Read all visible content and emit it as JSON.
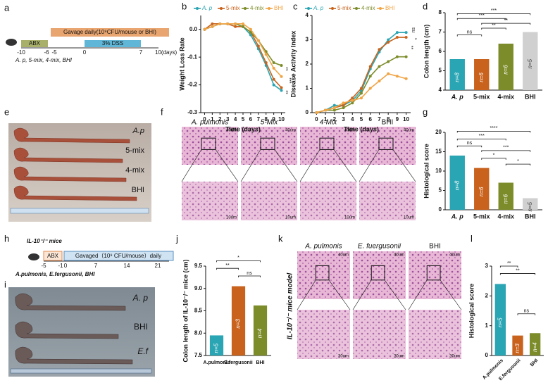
{
  "panel_labels": [
    "a",
    "b",
    "c",
    "d",
    "e",
    "f",
    "g",
    "h",
    "i",
    "j",
    "k",
    "l"
  ],
  "schematic_a": {
    "abx": "ABX",
    "gavage": "Gavage daily(10⁹CFU/mouse or BHI)",
    "dss": "3% DSS",
    "ticks": [
      "-10",
      "-6",
      "-5",
      "0",
      "7",
      "10(days)"
    ],
    "groups": "A. p, 5-mix, 4-mix, BHI"
  },
  "photo_e": {
    "labels": [
      "A.p",
      "5-mix",
      "4-mix",
      "BHI"
    ]
  },
  "histology_f": {
    "labels": [
      "A. pulmonis",
      "5-Mix",
      "4-Mix",
      "BHI"
    ],
    "scale_top": "40um",
    "scale_bottom": "10um"
  },
  "schematic_h": {
    "title": "IL-10⁻/⁻ mice",
    "abx": "ABX",
    "gavage": "Gavaged（10⁹ CFU/mouse）daily",
    "ticks": [
      "-5",
      "-1",
      "0",
      "7",
      "14",
      "21"
    ],
    "groups": "A.pulmonis, E.fergusonii, BHI"
  },
  "photo_i": {
    "labels": [
      "A. p",
      "BHI",
      "E.f"
    ]
  },
  "histology_k": {
    "labels": [
      "A. pulmonis",
      "E. fuergusonii",
      "BHI"
    ],
    "side": "IL-10⁻/⁻ mice model",
    "scale_top": "40um",
    "scale_bottom": "20um"
  },
  "chart_data": [
    {
      "type": "line",
      "xlabel": "Time (days)",
      "ylabel": "Weight Loss Rate",
      "x": [
        0,
        1,
        2,
        3,
        4,
        5,
        6,
        7,
        8,
        9,
        10
      ],
      "xlim": [
        -0.5,
        10.5
      ],
      "xticks": [
        0,
        1,
        2,
        3,
        4,
        5,
        6,
        7,
        8,
        9,
        10
      ],
      "ylim": [
        -0.3,
        0.05
      ],
      "yticks": [
        {
          "value": 0,
          "label": "0.0"
        },
        -0.1,
        -0.2,
        -0.3
      ],
      "series": [
        {
          "name": "A. p",
          "color": "#2aa5b3",
          "values": [
            0,
            0.01,
            0.02,
            0.02,
            0.02,
            0.01,
            -0.02,
            -0.07,
            -0.13,
            -0.2,
            -0.22
          ]
        },
        {
          "name": "5-mix",
          "color": "#c8621c",
          "values": [
            0,
            0.02,
            0.02,
            0.02,
            0.01,
            0.01,
            -0.01,
            -0.06,
            -0.12,
            -0.18,
            -0.21
          ]
        },
        {
          "name": "4-mix",
          "color": "#7d8c2a",
          "values": [
            0,
            0.01,
            0.02,
            0.02,
            0.02,
            0.01,
            -0.01,
            -0.04,
            -0.08,
            -0.12,
            -0.13
          ]
        },
        {
          "name": "BHI",
          "color": "#f0a445",
          "values": [
            0,
            0.01,
            0.02,
            0.02,
            0.02,
            0.02,
            0,
            -0.04,
            -0.09,
            -0.14,
            -0.17
          ]
        }
      ],
      "annotations": [
        "**",
        "***",
        "**"
      ]
    },
    {
      "type": "line",
      "xlabel": "Time (days)",
      "ylabel": "Disease Activity Index",
      "x": [
        0,
        1,
        2,
        3,
        4,
        5,
        6,
        7,
        8,
        9,
        10
      ],
      "xlim": [
        -0.5,
        10.5
      ],
      "xticks": [
        0,
        1,
        2,
        3,
        4,
        5,
        6,
        7,
        8,
        9,
        10
      ],
      "ylim": [
        0,
        4
      ],
      "yticks": [
        0,
        1,
        2,
        3,
        4
      ],
      "series": [
        {
          "name": "A. p",
          "color": "#2aa5b3",
          "values": [
            0,
            0.1,
            0.3,
            0.3,
            0.5,
            0.9,
            1.8,
            2.5,
            3.0,
            3.3,
            3.3
          ]
        },
        {
          "name": "5-mix",
          "color": "#c8621c",
          "values": [
            0,
            0.1,
            0.2,
            0.3,
            0.6,
            1.0,
            1.9,
            2.6,
            2.9,
            3.1,
            3.1
          ]
        },
        {
          "name": "4-mix",
          "color": "#7d8c2a",
          "values": [
            0,
            0.1,
            0.1,
            0.2,
            0.4,
            0.8,
            1.5,
            1.9,
            2.1,
            2.3,
            2.3
          ]
        },
        {
          "name": "BHI",
          "color": "#f0a445",
          "values": [
            0,
            0.1,
            0.2,
            0.4,
            0.5,
            0.6,
            1.0,
            1.3,
            1.6,
            1.5,
            1.4
          ]
        }
      ],
      "annotations": [
        "ns",
        "*",
        "**"
      ]
    },
    {
      "type": "bar",
      "ylabel": "Colon length (cm)",
      "categories": [
        "A. p",
        "5-mix",
        "4-mix",
        "BHI"
      ],
      "values": [
        5.6,
        5.6,
        6.4,
        7.0
      ],
      "colors": [
        "#2aa5b3",
        "#c8621c",
        "#7d8c2a",
        "#d0d0d0"
      ],
      "ylim": [
        4,
        8
      ],
      "yticks": [
        4,
        5,
        6,
        7,
        8
      ],
      "n_labels": [
        "n=8",
        "n=6",
        "n=6",
        "n=5"
      ],
      "annotations": [
        "ns",
        "**",
        "**",
        "***",
        "***"
      ]
    },
    {
      "type": "bar",
      "ylabel": "Histological score",
      "categories": [
        "A. p",
        "5-mix",
        "4-mix",
        "BHI"
      ],
      "values": [
        14,
        10.8,
        7,
        3
      ],
      "colors": [
        "#2aa5b3",
        "#c8621c",
        "#7d8c2a",
        "#d0d0d0"
      ],
      "ylim": [
        0,
        20
      ],
      "yticks": [
        0,
        5,
        10,
        15,
        20
      ],
      "n_labels": [
        "n=8",
        "n=6",
        "n=6",
        "n=5"
      ],
      "annotations": [
        "ns",
        "*",
        "***",
        "*",
        "***",
        "****"
      ]
    },
    {
      "type": "bar",
      "ylabel": "Colon length of IL-10⁻/⁻ mice (cm)",
      "categories": [
        "A.pulmonis",
        "E.fergusonii",
        "BHI"
      ],
      "values": [
        7.95,
        9.05,
        8.62
      ],
      "colors": [
        "#2aa5b3",
        "#c8621c",
        "#7d8c2a"
      ],
      "ylim": [
        7.5,
        9.5
      ],
      "yticks": [
        7.5,
        {
          "value": 8,
          "label": "8.0"
        },
        8.5,
        {
          "value": 9,
          "label": "9.0"
        },
        9.5
      ],
      "n_labels": [
        "n=5",
        "n=3",
        "n=4"
      ],
      "annotations": [
        "*",
        "**",
        "ns"
      ]
    },
    {
      "type": "bar",
      "ylabel": "Histological score",
      "categories": [
        "A.pulmonis",
        "E.fergusonii",
        "BHI"
      ],
      "values": [
        2.4,
        0.67,
        0.75
      ],
      "colors": [
        "#2aa5b3",
        "#c8621c",
        "#7d8c2a"
      ],
      "ylim": [
        0,
        3
      ],
      "yticks": [
        0,
        1,
        2,
        3
      ],
      "n_labels": [
        "n=5",
        "n=3",
        "n=4"
      ],
      "annotations": [
        "**",
        "**",
        "ns"
      ]
    }
  ]
}
